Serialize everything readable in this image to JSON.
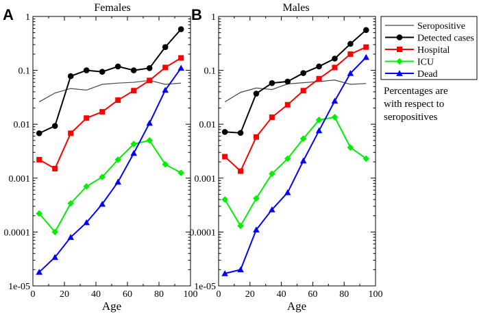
{
  "chart_data": [
    {
      "type": "line",
      "panel_letter": "A",
      "title": "Females",
      "xlabel": "Age",
      "ylabel": "",
      "xlim": [
        0,
        100
      ],
      "ylim": [
        1e-05,
        1
      ],
      "yscale": "log",
      "xticks": [
        0,
        20,
        40,
        60,
        80,
        100
      ],
      "yticks": [
        1e-05,
        0.0001,
        0.001,
        0.01,
        0.1,
        1
      ],
      "ytick_labels": [
        "1e-05",
        "0.0001",
        "0.001",
        "0.01",
        "0.1",
        "1"
      ],
      "series": [
        {
          "name": "Seropositive",
          "color": "#444444",
          "marker": "none",
          "x": [
            4,
            14,
            24,
            34,
            44,
            54,
            64,
            74,
            84,
            94
          ],
          "y": [
            0.026,
            0.038,
            0.046,
            0.043,
            0.055,
            0.058,
            0.06,
            0.065,
            0.055,
            0.058
          ]
        },
        {
          "name": "Detected cases",
          "color": "#000000",
          "marker": "circle",
          "x": [
            4,
            14,
            24,
            34,
            44,
            54,
            64,
            74,
            84,
            94
          ],
          "y": [
            0.0068,
            0.0093,
            0.078,
            0.1,
            0.094,
            0.118,
            0.1,
            0.11,
            0.27,
            0.58
          ]
        },
        {
          "name": "Hospital",
          "color": "#ff0000",
          "marker": "square",
          "x": [
            4,
            14,
            24,
            34,
            44,
            54,
            64,
            74,
            84,
            94
          ],
          "y": [
            0.0022,
            0.0015,
            0.0068,
            0.013,
            0.017,
            0.028,
            0.042,
            0.065,
            0.113,
            0.17
          ]
        },
        {
          "name": "ICU",
          "color": "#00ee00",
          "marker": "diamond",
          "x": [
            4,
            14,
            24,
            34,
            44,
            54,
            64,
            74,
            84,
            94
          ],
          "y": [
            0.00022,
            0.0001,
            0.00034,
            0.0007,
            0.00105,
            0.0022,
            0.0043,
            0.005,
            0.0018,
            0.00125
          ]
        },
        {
          "name": "Dead",
          "color": "#0000ff",
          "marker": "triangle",
          "x": [
            4,
            14,
            24,
            34,
            44,
            54,
            64,
            74,
            84,
            94
          ],
          "y": [
            1.8e-05,
            3.4e-05,
            8e-05,
            0.00015,
            0.00033,
            0.00085,
            0.0029,
            0.0105,
            0.043,
            0.11
          ]
        }
      ]
    },
    {
      "type": "line",
      "panel_letter": "B",
      "title": "Males",
      "xlabel": "Age",
      "ylabel": "",
      "xlim": [
        0,
        100
      ],
      "ylim": [
        1e-05,
        1
      ],
      "yscale": "log",
      "xticks": [
        0,
        20,
        40,
        60,
        80,
        100
      ],
      "yticks": [
        1e-05,
        0.0001,
        0.001,
        0.01,
        0.1,
        1
      ],
      "ytick_labels": [
        "1e-05",
        "0.0001",
        "0.001",
        "0.01",
        "0.1",
        "1"
      ],
      "series": [
        {
          "name": "Seropositive",
          "color": "#444444",
          "marker": "none",
          "x": [
            4,
            14,
            24,
            34,
            44,
            54,
            64,
            74,
            84,
            94
          ],
          "y": [
            0.026,
            0.039,
            0.047,
            0.044,
            0.056,
            0.059,
            0.062,
            0.066,
            0.055,
            0.057
          ]
        },
        {
          "name": "Detected cases",
          "color": "#000000",
          "marker": "circle",
          "x": [
            4,
            14,
            24,
            34,
            44,
            54,
            64,
            74,
            84,
            94
          ],
          "y": [
            0.0072,
            0.0069,
            0.037,
            0.058,
            0.062,
            0.089,
            0.118,
            0.165,
            0.31,
            0.56
          ]
        },
        {
          "name": "Hospital",
          "color": "#ff0000",
          "marker": "square",
          "x": [
            4,
            14,
            24,
            34,
            44,
            54,
            64,
            74,
            84,
            94
          ],
          "y": [
            0.0025,
            0.00135,
            0.0058,
            0.0135,
            0.023,
            0.042,
            0.07,
            0.113,
            0.2,
            0.27
          ]
        },
        {
          "name": "ICU",
          "color": "#00ee00",
          "marker": "diamond",
          "x": [
            4,
            14,
            24,
            34,
            44,
            54,
            64,
            74,
            84,
            94
          ],
          "y": [
            0.0004,
            0.00013,
            0.00042,
            0.0012,
            0.0023,
            0.0054,
            0.012,
            0.0135,
            0.0037,
            0.0023
          ]
        },
        {
          "name": "Dead",
          "color": "#0000ff",
          "marker": "triangle",
          "x": [
            4,
            14,
            24,
            34,
            44,
            54,
            64,
            74,
            84,
            94
          ],
          "y": [
            1.7e-05,
            2e-05,
            0.00011,
            0.00026,
            0.00054,
            0.0021,
            0.0076,
            0.027,
            0.088,
            0.175
          ]
        }
      ]
    }
  ],
  "legend": {
    "items": [
      {
        "label": "Seropositive",
        "color": "#444444",
        "marker": "none"
      },
      {
        "label": "Detected cases",
        "color": "#000000",
        "marker": "circle"
      },
      {
        "label": "Hospital",
        "color": "#ff0000",
        "marker": "square"
      },
      {
        "label": "ICU",
        "color": "#00ee00",
        "marker": "diamond"
      },
      {
        "label": "Dead",
        "color": "#0000ff",
        "marker": "triangle"
      }
    ]
  },
  "note": {
    "lines": [
      "Percentages are",
      "with respect to",
      "seropositives"
    ]
  }
}
